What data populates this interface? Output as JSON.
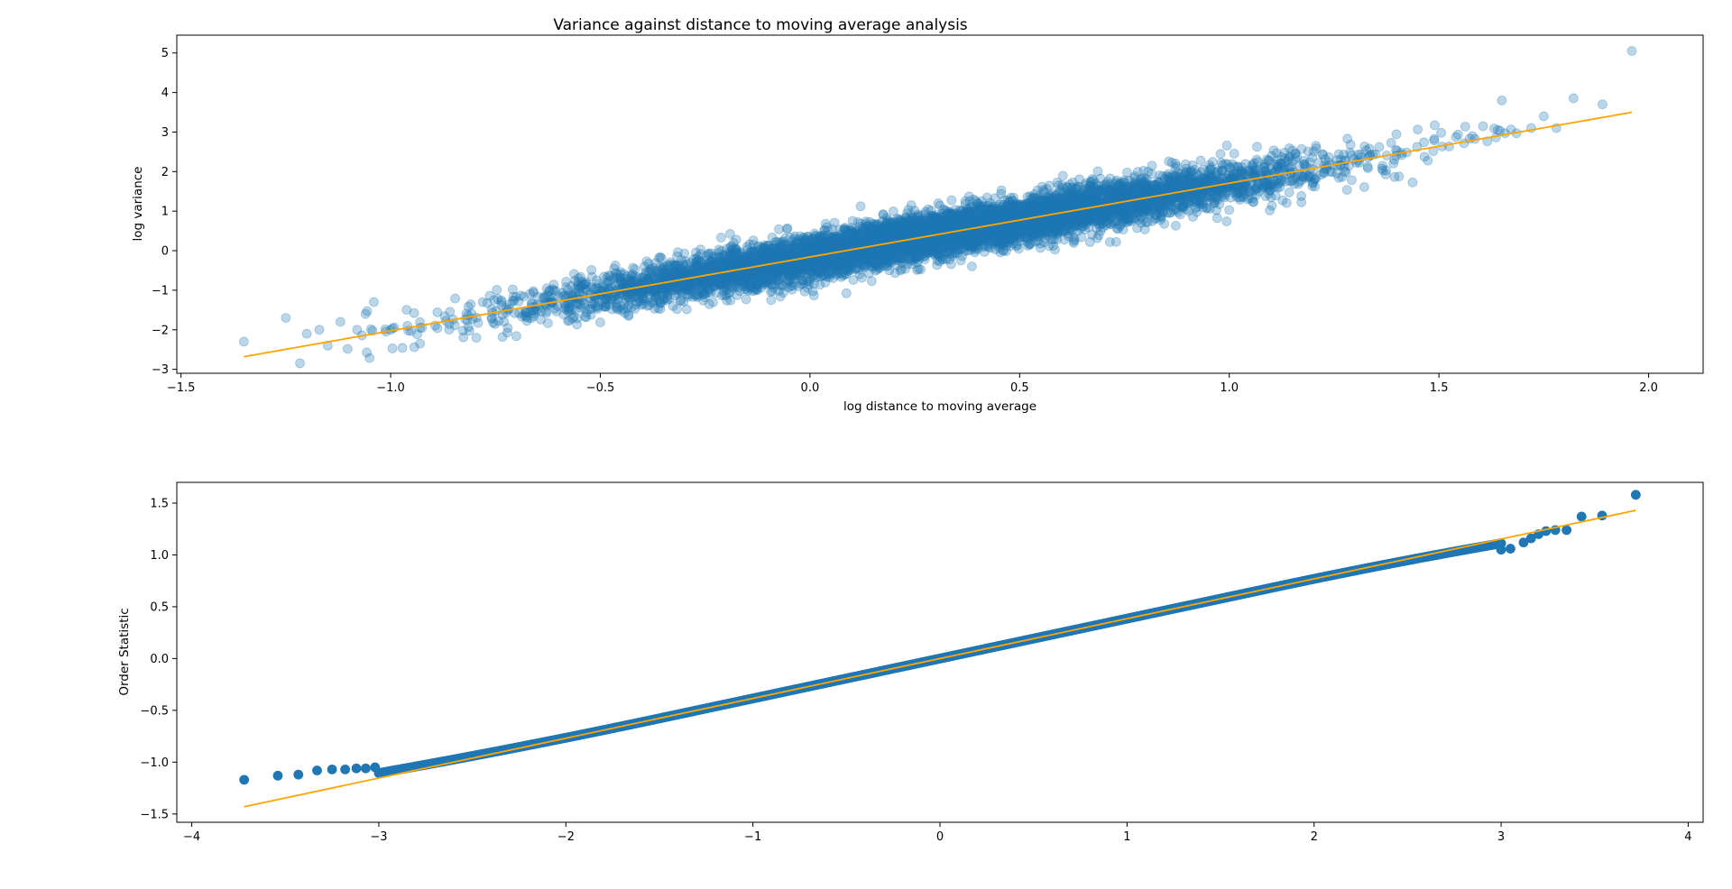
{
  "figure": {
    "title": "Variance against distance to moving average analysis"
  },
  "colors": {
    "points": "#1f77b4",
    "fit_line": "#ffa500",
    "axes": "#000000",
    "background": "#ffffff"
  },
  "chart_data": [
    {
      "type": "scatter",
      "title": "Variance against distance to moving average analysis",
      "xlabel": "log distance to moving average",
      "ylabel": "log variance",
      "xlim": [
        -1.51,
        2.13
      ],
      "ylim": [
        -3.1,
        5.45
      ],
      "xticks": [
        -1.5,
        -1.0,
        -0.5,
        0.0,
        0.5,
        1.0,
        1.5,
        2.0
      ],
      "xtick_labels": [
        "−1.5",
        "−1.0",
        "−0.5",
        "0.0",
        "0.5",
        "1.0",
        "1.5",
        "2.0"
      ],
      "yticks": [
        -3,
        -2,
        -1,
        0,
        1,
        2,
        3,
        4,
        5
      ],
      "ytick_labels": [
        "−3",
        "−2",
        "−1",
        "0",
        "1",
        "2",
        "3",
        "4",
        "5"
      ],
      "grid": false,
      "point_alpha": 0.3,
      "cloud": {
        "description_of_points": "dense linear cloud",
        "n_points": 8000,
        "x_range": [
          -1.35,
          1.96
        ],
        "center_x": 0.3,
        "slope": 1.87,
        "intercept": -0.16,
        "residual_sd": 0.28
      },
      "outliers": [
        {
          "x": -1.35,
          "y": -2.3
        },
        {
          "x": -1.25,
          "y": -1.7
        },
        {
          "x": -1.2,
          "y": -2.1
        },
        {
          "x": -1.17,
          "y": -2.0
        },
        {
          "x": -1.15,
          "y": -2.4
        },
        {
          "x": -1.12,
          "y": -1.8
        },
        {
          "x": -1.08,
          "y": -2.0
        },
        {
          "x": -1.06,
          "y": -1.6
        },
        {
          "x": -1.04,
          "y": -1.3
        },
        {
          "x": -1.0,
          "y": -2.0
        },
        {
          "x": -0.96,
          "y": -1.9
        },
        {
          "x": -0.93,
          "y": -2.35
        },
        {
          "x": 1.65,
          "y": 3.8
        },
        {
          "x": 1.72,
          "y": 3.1
        },
        {
          "x": 1.75,
          "y": 3.4
        },
        {
          "x": 1.78,
          "y": 3.1
        },
        {
          "x": 1.89,
          "y": 3.7
        },
        {
          "x": 1.96,
          "y": 5.05
        }
      ],
      "fit_line": {
        "x": [
          -1.35,
          1.96
        ],
        "y": [
          -2.68,
          3.5
        ]
      }
    },
    {
      "type": "scatter",
      "title": "",
      "xlabel": "",
      "ylabel": "Order Statistic",
      "xlim": [
        -4.08,
        4.08
      ],
      "ylim": [
        -1.58,
        1.7
      ],
      "xticks": [
        -4,
        -3,
        -2,
        -1,
        0,
        1,
        2,
        3,
        4
      ],
      "xtick_labels": [
        "−4",
        "−3",
        "−2",
        "−1",
        "0",
        "1",
        "2",
        "3",
        "4"
      ],
      "yticks": [
        -1.5,
        -1.0,
        -0.5,
        0.0,
        0.5,
        1.0,
        1.5
      ],
      "ytick_labels": [
        "−1.5",
        "−1.0",
        "−0.5",
        "0.0",
        "0.5",
        "1.0",
        "1.5"
      ],
      "grid": false,
      "point_alpha": 1.0,
      "qq": {
        "n_points": 1200,
        "x_range": [
          -3.72,
          3.72
        ],
        "core_slope": 0.385,
        "core_intercept": 0.0
      },
      "tail_points": [
        {
          "x": -3.72,
          "y": -1.17
        },
        {
          "x": -3.54,
          "y": -1.13
        },
        {
          "x": -3.43,
          "y": -1.12
        },
        {
          "x": -3.33,
          "y": -1.08
        },
        {
          "x": -3.25,
          "y": -1.07
        },
        {
          "x": -3.18,
          "y": -1.07
        },
        {
          "x": -3.12,
          "y": -1.06
        },
        {
          "x": -3.07,
          "y": -1.06
        },
        {
          "x": -3.02,
          "y": -1.05
        },
        {
          "x": 3.0,
          "y": 1.05
        },
        {
          "x": 3.05,
          "y": 1.06
        },
        {
          "x": 3.12,
          "y": 1.12
        },
        {
          "x": 3.16,
          "y": 1.16
        },
        {
          "x": 3.2,
          "y": 1.2
        },
        {
          "x": 3.24,
          "y": 1.23
        },
        {
          "x": 3.29,
          "y": 1.24
        },
        {
          "x": 3.35,
          "y": 1.24
        },
        {
          "x": 3.43,
          "y": 1.37
        },
        {
          "x": 3.54,
          "y": 1.38
        },
        {
          "x": 3.72,
          "y": 1.58
        }
      ],
      "fit_line": {
        "x": [
          -3.72,
          3.72
        ],
        "y": [
          -1.43,
          1.43
        ]
      }
    }
  ]
}
